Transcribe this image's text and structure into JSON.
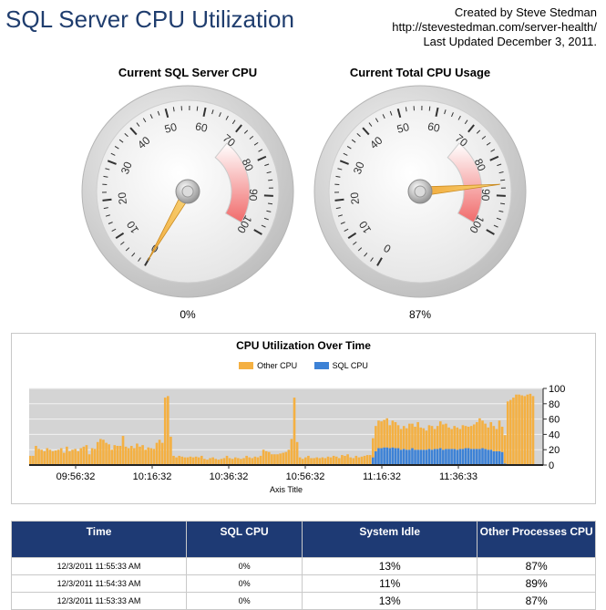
{
  "header": {
    "title": "SQL Server CPU Utilization",
    "credit_line1": "Created by Steve Stedman",
    "credit_line2": "http://stevestedman.com/server-health/",
    "credit_line3": "Last Updated December 3, 2011."
  },
  "gauges": [
    {
      "title": "Current SQL Server CPU",
      "value": 0,
      "value_label": "0%"
    },
    {
      "title": "Current Total CPU Usage",
      "value": 87,
      "value_label": "87%"
    }
  ],
  "gauge_scale": {
    "min": 0,
    "max": 100,
    "labels": [
      "0",
      "10",
      "20",
      "30",
      "40",
      "50",
      "60",
      "70",
      "80",
      "90",
      "100"
    ]
  },
  "chart_data": {
    "type": "bar",
    "title": "CPU Utilization Over Time",
    "xlabel": "Axis Title",
    "ylabel": "",
    "ylim": [
      0,
      100
    ],
    "yticks": [
      "0",
      "20",
      "40",
      "60",
      "80",
      "100"
    ],
    "xticks": [
      "09:56:32",
      "10:16:32",
      "10:36:32",
      "10:56:32",
      "11:16:32",
      "11:36:33"
    ],
    "series": [
      {
        "name": "Other CPU",
        "color": "#f4b042"
      },
      {
        "name": "SQL CPU",
        "color": "#3d82d6"
      }
    ],
    "other_cpu": [
      12,
      12,
      25,
      21,
      20,
      18,
      22,
      20,
      18,
      19,
      20,
      22,
      16,
      24,
      18,
      20,
      21,
      18,
      22,
      24,
      26,
      14,
      22,
      21,
      30,
      34,
      33,
      29,
      27,
      20,
      26,
      25,
      25,
      38,
      24,
      22,
      25,
      22,
      28,
      24,
      26,
      20,
      23,
      22,
      21,
      29,
      33,
      29,
      88,
      90,
      37,
      12,
      10,
      12,
      11,
      10,
      10,
      11,
      10,
      11,
      10,
      12,
      8,
      7,
      9,
      10,
      8,
      7,
      8,
      9,
      12,
      9,
      8,
      10,
      9,
      8,
      9,
      12,
      10,
      9,
      11,
      10,
      12,
      20,
      18,
      17,
      14,
      14,
      14,
      15,
      16,
      17,
      20,
      34,
      88,
      30,
      10,
      8,
      10,
      12,
      9,
      9,
      10,
      9,
      10,
      9,
      11,
      10,
      12,
      11,
      9,
      13,
      12,
      14,
      10,
      9,
      12,
      10,
      11,
      12,
      13,
      13,
      25,
      33,
      36,
      35,
      36,
      38,
      30,
      35,
      34,
      30,
      27,
      30,
      28,
      34,
      32,
      30,
      36,
      29,
      28,
      25,
      31,
      31,
      26,
      30,
      35,
      33,
      33,
      28,
      26,
      30,
      29,
      26,
      31,
      29,
      28,
      30,
      32,
      35,
      40,
      36,
      33,
      29,
      36,
      33,
      29,
      40,
      33,
      37,
      83,
      85,
      88,
      92,
      92,
      91,
      90,
      92,
      93,
      90,
      93,
      92,
      90
    ],
    "sql_cpu": [
      0,
      0,
      0,
      0,
      0,
      0,
      0,
      0,
      0,
      0,
      0,
      0,
      0,
      0,
      0,
      0,
      0,
      0,
      0,
      0,
      0,
      0,
      0,
      0,
      0,
      0,
      0,
      0,
      0,
      0,
      0,
      0,
      0,
      0,
      0,
      0,
      0,
      0,
      0,
      0,
      0,
      0,
      0,
      0,
      0,
      0,
      0,
      0,
      0,
      0,
      0,
      0,
      0,
      0,
      0,
      0,
      0,
      0,
      0,
      0,
      0,
      0,
      0,
      0,
      0,
      0,
      0,
      0,
      0,
      0,
      0,
      0,
      0,
      0,
      0,
      0,
      0,
      0,
      0,
      0,
      0,
      0,
      0,
      0,
      0,
      0,
      0,
      0,
      0,
      0,
      0,
      0,
      0,
      0,
      0,
      0,
      0,
      0,
      0,
      0,
      0,
      0,
      0,
      0,
      0,
      0,
      0,
      0,
      0,
      0,
      0,
      0,
      0,
      0,
      0,
      0,
      0,
      0,
      0,
      0,
      0,
      0,
      10,
      18,
      22,
      22,
      23,
      23,
      22,
      23,
      22,
      22,
      20,
      21,
      20,
      20,
      22,
      20,
      20,
      20,
      20,
      20,
      21,
      20,
      21,
      21,
      22,
      20,
      21,
      21,
      21,
      21,
      20,
      21,
      21,
      22,
      22,
      21,
      21,
      21,
      21,
      22,
      21,
      20,
      20,
      18,
      18,
      18,
      17,
      2,
      0,
      0,
      0,
      0,
      0,
      0,
      0,
      0,
      0,
      0
    ]
  },
  "table": {
    "headers": [
      "Time",
      "SQL CPU",
      "System Idle",
      "Other Processes CPU"
    ],
    "rows": [
      [
        "12/3/2011 11:55:33 AM",
        "0%",
        "13%",
        "87%"
      ],
      [
        "12/3/2011 11:54:33 AM",
        "0%",
        "11%",
        "89%"
      ],
      [
        "12/3/2011 11:53:33 AM",
        "0%",
        "13%",
        "87%"
      ]
    ]
  }
}
